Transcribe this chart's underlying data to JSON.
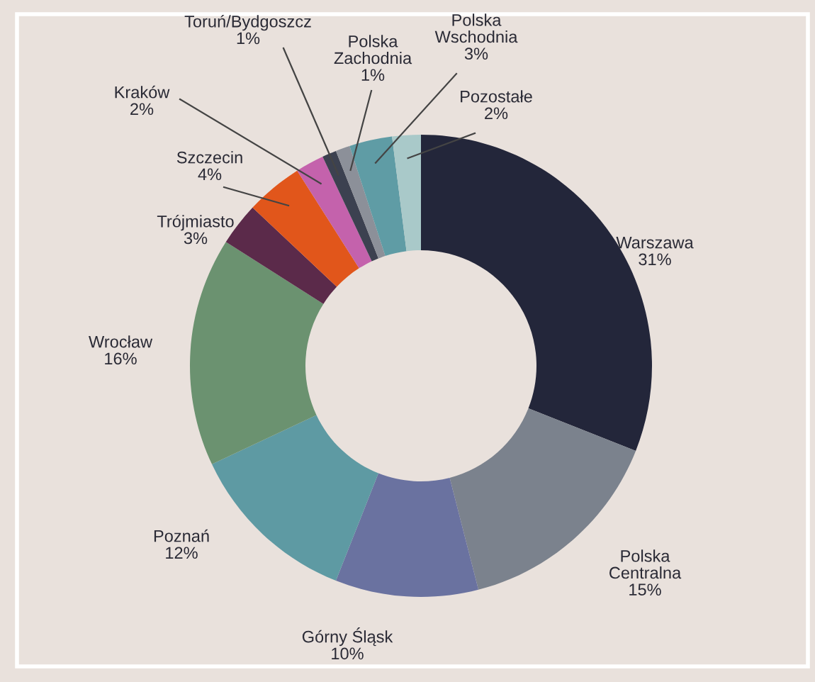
{
  "chart_data": {
    "type": "donut",
    "categories": [
      "Warszawa",
      "Polska Centralna",
      "Górny Śląsk",
      "Poznań",
      "Wrocław",
      "Trójmiasto",
      "Szczecin",
      "Kraków",
      "Toruń/Bydgoszcz",
      "Polska Zachodnia",
      "Polska Wschodnia",
      "Pozostałe"
    ],
    "values": [
      31,
      15,
      10,
      12,
      16,
      3,
      4,
      2,
      1,
      1,
      3,
      2
    ],
    "value_labels": [
      "31%",
      "15%",
      "10%",
      "12%",
      "16%",
      "3%",
      "4%",
      "2%",
      "1%",
      "1%",
      "3%",
      "2%"
    ],
    "colors": [
      "#23263a",
      "#7b828d",
      "#6a72a0",
      "#5e9aa3",
      "#6b9270",
      "#5b2a4a",
      "#e1561b",
      "#c462ac",
      "#3c4150",
      "#8c9099",
      "#5f9ca5",
      "#a9c9c9"
    ]
  }
}
